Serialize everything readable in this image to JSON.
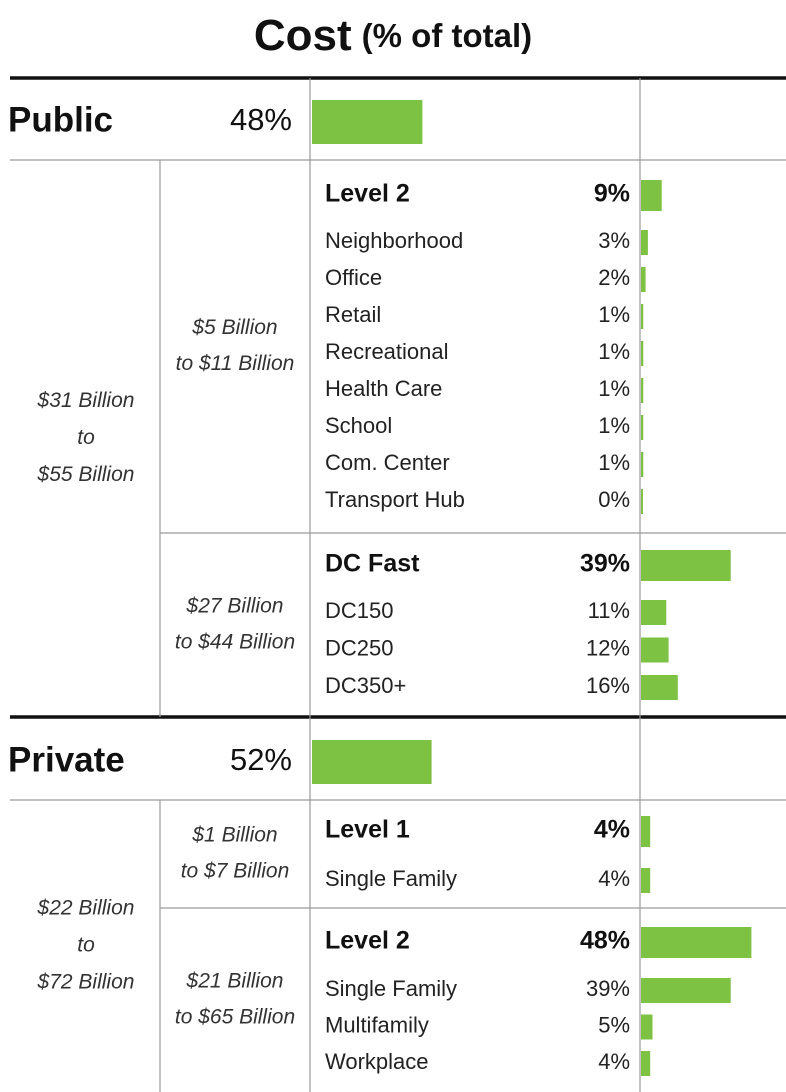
{
  "title": "Cost",
  "subtitle": "(% of total)",
  "sections": [
    {
      "name": "Public",
      "share": {
        "value": 48,
        "label": "48%"
      },
      "range": [
        "$31 Billion",
        "to",
        "$55 Billion"
      ],
      "groups": [
        {
          "range": [
            "$5 Billion",
            "to $11 Billion"
          ],
          "header": {
            "name": "Level 2",
            "share": {
              "value": 9,
              "label": "9%"
            }
          },
          "items": [
            {
              "name": "Neighborhood",
              "share": {
                "value": 3,
                "label": "3%"
              }
            },
            {
              "name": "Office",
              "share": {
                "value": 2,
                "label": "2%"
              }
            },
            {
              "name": "Retail",
              "share": {
                "value": 1,
                "label": "1%"
              }
            },
            {
              "name": "Recreational",
              "share": {
                "value": 1,
                "label": "1%"
              }
            },
            {
              "name": "Health Care",
              "share": {
                "value": 1,
                "label": "1%"
              }
            },
            {
              "name": "School",
              "share": {
                "value": 1,
                "label": "1%"
              }
            },
            {
              "name": "Com. Center",
              "share": {
                "value": 1,
                "label": "1%"
              }
            },
            {
              "name": "Transport Hub",
              "share": {
                "value": 0,
                "label": "0%"
              }
            }
          ]
        },
        {
          "range": [
            "$27 Billion",
            "to $44 Billion"
          ],
          "header": {
            "name": "DC Fast",
            "share": {
              "value": 39,
              "label": "39%"
            }
          },
          "items": [
            {
              "name": "DC150",
              "share": {
                "value": 11,
                "label": "11%"
              }
            },
            {
              "name": "DC250",
              "share": {
                "value": 12,
                "label": "12%"
              }
            },
            {
              "name": "DC350+",
              "share": {
                "value": 16,
                "label": "16%"
              }
            }
          ]
        }
      ]
    },
    {
      "name": "Private",
      "share": {
        "value": 52,
        "label": "52%"
      },
      "range": [
        "$22 Billion",
        "to",
        "$72 Billion"
      ],
      "groups": [
        {
          "range": [
            "$1 Billion",
            "to $7 Billion"
          ],
          "header": {
            "name": "Level 1",
            "share": {
              "value": 4,
              "label": "4%"
            }
          },
          "items": [
            {
              "name": "Single Family",
              "share": {
                "value": 4,
                "label": "4%"
              }
            }
          ]
        },
        {
          "range": [
            "$21 Billion",
            "to $65 Billion"
          ],
          "header": {
            "name": "Level 2",
            "share": {
              "value": 48,
              "label": "48%"
            }
          },
          "items": [
            {
              "name": "Single Family",
              "share": {
                "value": 39,
                "label": "39%"
              }
            },
            {
              "name": "Multifamily",
              "share": {
                "value": 5,
                "label": "5%"
              }
            },
            {
              "name": "Workplace",
              "share": {
                "value": 4,
                "label": "4%"
              }
            }
          ]
        }
      ]
    }
  ],
  "bar_color": "#7dc242"
}
